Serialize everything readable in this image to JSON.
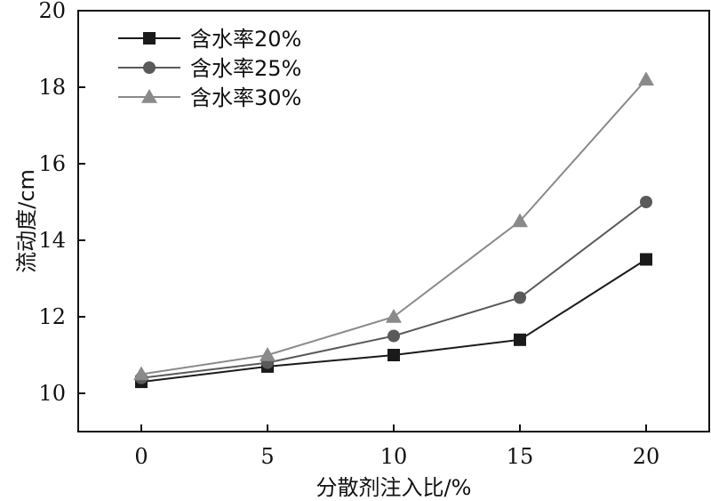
{
  "chart_data": {
    "type": "line",
    "title": "",
    "xlabel": "分散剂注入比/%",
    "ylabel": "流动度/cm",
    "x": [
      0,
      5,
      10,
      15,
      20
    ],
    "xlim": [
      -2.5,
      22.5
    ],
    "ylim": [
      9,
      20
    ],
    "x_ticks": [
      0,
      5,
      10,
      15,
      20
    ],
    "y_ticks": [
      10,
      12,
      14,
      16,
      18,
      20
    ],
    "grid": false,
    "legend_position": "top-left",
    "series": [
      {
        "name": "含水率20%",
        "marker": "square",
        "color": "#1a1a1a",
        "values": [
          10.3,
          10.7,
          11.0,
          11.4,
          13.5
        ]
      },
      {
        "name": "含水率25%",
        "marker": "circle",
        "color": "#5a5a5a",
        "values": [
          10.4,
          10.8,
          11.5,
          12.5,
          15.0
        ]
      },
      {
        "name": "含水率30%",
        "marker": "triangle",
        "color": "#8a8a8a",
        "values": [
          10.5,
          11.0,
          12.0,
          14.5,
          18.2
        ]
      }
    ]
  }
}
